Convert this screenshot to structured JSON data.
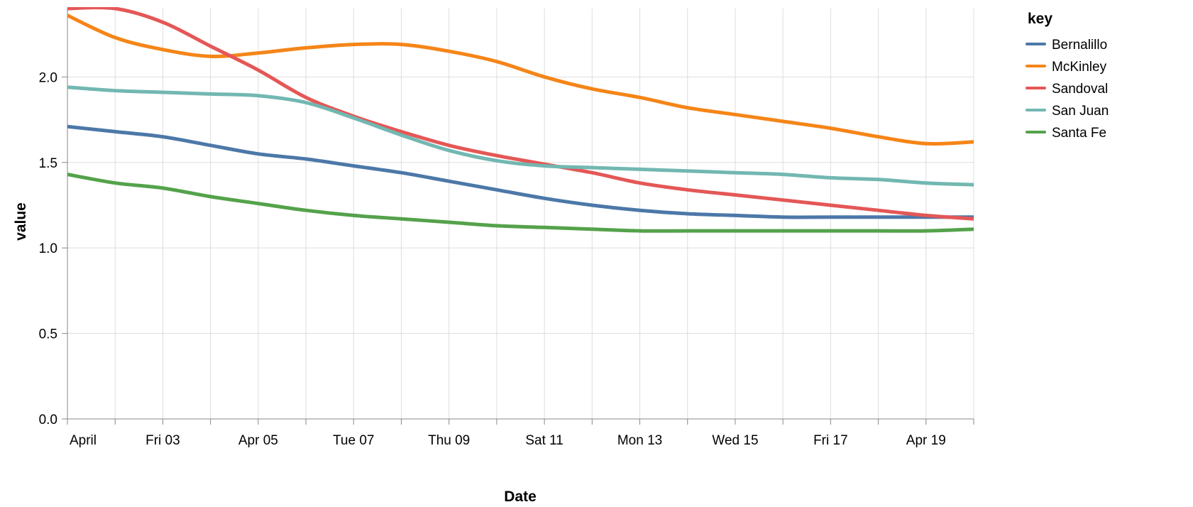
{
  "chart_data": {
    "type": "line",
    "xlabel": "Date",
    "ylabel": "value",
    "ylim": [
      0,
      2.4
    ],
    "y_ticks": [
      "0.0",
      "0.5",
      "1.0",
      "1.5",
      "2.0"
    ],
    "y_tick_values": [
      0,
      0.5,
      1.0,
      1.5,
      2.0
    ],
    "x_ticks": [
      "April",
      "Fri 03",
      "Apr 05",
      "Tue 07",
      "Thu 09",
      "Sat 11",
      "Mon 13",
      "Wed 15",
      "Fri 17",
      "Apr 19"
    ],
    "x_tick_dates": [
      "2020-04-01",
      "2020-04-03",
      "2020-04-05",
      "2020-04-07",
      "2020-04-09",
      "2020-04-11",
      "2020-04-13",
      "2020-04-15",
      "2020-04-17",
      "2020-04-19"
    ],
    "x": [
      "2020-04-01",
      "2020-04-02",
      "2020-04-03",
      "2020-04-04",
      "2020-04-05",
      "2020-04-06",
      "2020-04-07",
      "2020-04-08",
      "2020-04-09",
      "2020-04-10",
      "2020-04-11",
      "2020-04-12",
      "2020-04-13",
      "2020-04-14",
      "2020-04-15",
      "2020-04-16",
      "2020-04-17",
      "2020-04-18",
      "2020-04-19",
      "2020-04-20"
    ],
    "grid": true,
    "legend": {
      "title": "key",
      "placement": "top-right"
    },
    "series": [
      {
        "name": "Bernalillo",
        "color": "#4c78a8",
        "values": [
          1.71,
          1.68,
          1.65,
          1.6,
          1.55,
          1.52,
          1.48,
          1.44,
          1.39,
          1.34,
          1.29,
          1.25,
          1.22,
          1.2,
          1.19,
          1.18,
          1.18,
          1.18,
          1.18,
          1.18
        ]
      },
      {
        "name": "McKinley",
        "color": "#f58518",
        "values": [
          2.36,
          2.23,
          2.16,
          2.12,
          2.14,
          2.17,
          2.19,
          2.19,
          2.15,
          2.09,
          2.0,
          1.93,
          1.88,
          1.82,
          1.78,
          1.74,
          1.7,
          1.65,
          1.61,
          1.62
        ]
      },
      {
        "name": "Sandoval",
        "color": "#e45756",
        "values": [
          2.4,
          2.4,
          2.32,
          2.18,
          2.04,
          1.88,
          1.77,
          1.68,
          1.6,
          1.54,
          1.49,
          1.44,
          1.38,
          1.34,
          1.31,
          1.28,
          1.25,
          1.22,
          1.19,
          1.17
        ]
      },
      {
        "name": "San Juan",
        "color": "#72b7b2",
        "values": [
          1.94,
          1.92,
          1.91,
          1.9,
          1.89,
          1.85,
          1.76,
          1.66,
          1.57,
          1.51,
          1.48,
          1.47,
          1.46,
          1.45,
          1.44,
          1.43,
          1.41,
          1.4,
          1.38,
          1.37
        ]
      },
      {
        "name": "Santa Fe",
        "color": "#54a24b",
        "values": [
          1.43,
          1.38,
          1.35,
          1.3,
          1.26,
          1.22,
          1.19,
          1.17,
          1.15,
          1.13,
          1.12,
          1.11,
          1.1,
          1.1,
          1.1,
          1.1,
          1.1,
          1.1,
          1.1,
          1.11
        ]
      }
    ]
  }
}
